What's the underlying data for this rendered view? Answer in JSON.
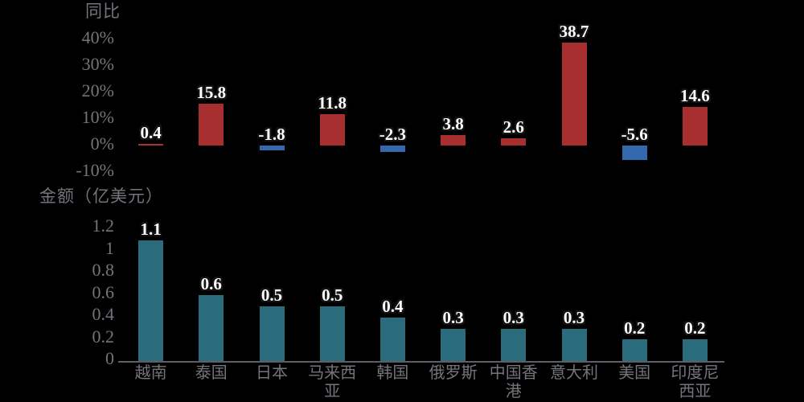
{
  "page": {
    "background": "#000000"
  },
  "style": {
    "text_color": "#74747C",
    "axis_line_color": "#5E5E66",
    "data_label_color": "#FFFFFF",
    "data_label_outline_color": "#141414"
  },
  "chart_data": [
    {
      "type": "bar",
      "title": "同比",
      "categories": [
        "越南",
        "泰国",
        "日本",
        "马来西亚",
        "韩国",
        "俄罗斯",
        "中国香港",
        "意大利",
        "美国",
        "印度尼西亚"
      ],
      "values": [
        0.4,
        15.8,
        -1.8,
        11.8,
        -2.3,
        3.8,
        2.6,
        38.7,
        -5.6,
        14.6
      ],
      "data_labels": [
        "0.4",
        "15.8",
        "-1.8",
        "11.8",
        "-2.3",
        "3.8",
        "2.6",
        "38.7",
        "-5.6",
        "14.6"
      ],
      "unit": "%",
      "yticks": [
        {
          "label": "40%",
          "value": 40
        },
        {
          "label": "30%",
          "value": 30
        },
        {
          "label": "20%",
          "value": 20
        },
        {
          "label": "10%",
          "value": 10
        },
        {
          "label": "0%",
          "value": 0
        },
        {
          "label": "-10%",
          "value": -10
        }
      ],
      "ylim": [
        -10,
        44
      ],
      "grid": false,
      "legend": null,
      "x_axis_labels_visible": false,
      "colors": {
        "positive": "#A82F2F",
        "negative": "#3468AD"
      }
    },
    {
      "type": "bar",
      "title": "金额（亿美元）",
      "categories": [
        "越南",
        "泰国",
        "日本",
        "马来西亚",
        "韩国",
        "俄罗斯",
        "中国香港",
        "意大利",
        "美国",
        "印度尼西亚"
      ],
      "values": [
        1.1,
        0.6,
        0.5,
        0.5,
        0.4,
        0.3,
        0.3,
        0.3,
        0.2,
        0.2
      ],
      "data_labels": [
        "1.1",
        "0.6",
        "0.5",
        "0.5",
        "0.4",
        "0.3",
        "0.3",
        "0.3",
        "0.2",
        "0.2"
      ],
      "unit": "亿美元",
      "yticks": [
        {
          "label": "1.2",
          "value": 1.2
        },
        {
          "label": "1",
          "value": 1
        },
        {
          "label": "0.8",
          "value": 0.8
        },
        {
          "label": "0.6",
          "value": 0.6
        },
        {
          "label": "0.4",
          "value": 0.4
        },
        {
          "label": "0.2",
          "value": 0.2
        },
        {
          "label": "0",
          "value": 0
        }
      ],
      "ylim": [
        0,
        1.2
      ],
      "grid": false,
      "legend": null,
      "x_axis_labels_visible": true,
      "colors": {
        "bar": "#2A6B7C"
      }
    }
  ]
}
